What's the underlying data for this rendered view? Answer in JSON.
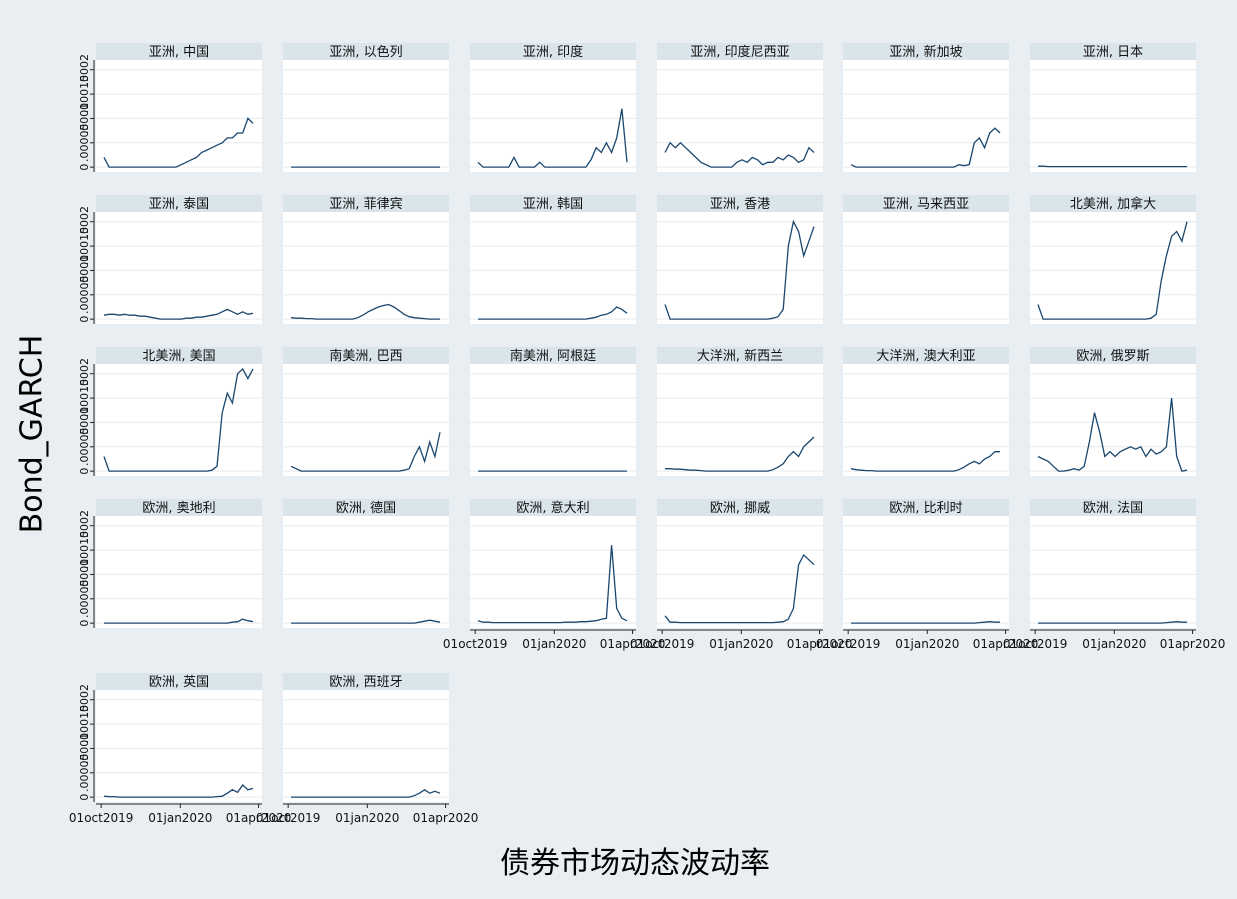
{
  "chart_data": {
    "type": "line",
    "ylabel": "Bond_GARCH",
    "xlabel": "债券市场动态波动率",
    "x_ticks": [
      "01oct2019",
      "01jan2020",
      "01apr2020"
    ],
    "y_ticks": [
      "0",
      ".00005",
      ".0001",
      ".00015",
      ".0002"
    ],
    "ylim": [
      -1e-05,
      0.00022
    ],
    "xlim": [
      "2019-09-25",
      "2020-04-05"
    ],
    "grid": true,
    "panels": [
      {
        "title": "亚洲, 中国",
        "values": [
          2e-05,
          0,
          0,
          0,
          0,
          0,
          0,
          0,
          0,
          0,
          0,
          0,
          0,
          0,
          0,
          5e-06,
          1e-05,
          1.5e-05,
          2e-05,
          3e-05,
          3.5e-05,
          4e-05,
          4.5e-05,
          5e-05,
          6e-05,
          6e-05,
          7e-05,
          7e-05,
          0.0001,
          9e-05
        ]
      },
      {
        "title": "亚洲, 以色列",
        "values": [
          0,
          0,
          0,
          0,
          0,
          0,
          0,
          0,
          0,
          0,
          0,
          0,
          0,
          0,
          0,
          0,
          0,
          0,
          0,
          0,
          0,
          0,
          0,
          0,
          0,
          0,
          0,
          0,
          0,
          0
        ]
      },
      {
        "title": "亚洲, 印度",
        "values": [
          1e-05,
          0,
          0,
          0,
          0,
          0,
          0,
          2e-05,
          0,
          0,
          0,
          0,
          1e-05,
          0,
          0,
          0,
          0,
          0,
          0,
          0,
          0,
          0,
          1.5e-05,
          4e-05,
          3e-05,
          5e-05,
          3e-05,
          6e-05,
          0.00012,
          1e-05
        ]
      },
      {
        "title": "亚洲, 印度尼西亚",
        "values": [
          3e-05,
          5e-05,
          4e-05,
          5e-05,
          4e-05,
          3e-05,
          2e-05,
          1e-05,
          5e-06,
          0,
          0,
          0,
          0,
          0,
          1e-05,
          1.5e-05,
          1e-05,
          2e-05,
          1.5e-05,
          5e-06,
          1e-05,
          1e-05,
          2e-05,
          1.5e-05,
          2.5e-05,
          2e-05,
          1e-05,
          1.5e-05,
          4e-05,
          3e-05
        ]
      },
      {
        "title": "亚洲, 新加坡",
        "values": [
          5e-06,
          0,
          0,
          0,
          0,
          0,
          0,
          0,
          0,
          0,
          0,
          0,
          0,
          0,
          0,
          0,
          0,
          0,
          0,
          0,
          0,
          5e-06,
          3e-06,
          5e-06,
          5e-05,
          6e-05,
          4e-05,
          7e-05,
          8e-05,
          7e-05
        ]
      },
      {
        "title": "亚洲, 日本",
        "values": [
          2e-06,
          2e-06,
          1e-06,
          1e-06,
          1e-06,
          1e-06,
          1e-06,
          1e-06,
          1e-06,
          1e-06,
          1e-06,
          1e-06,
          1e-06,
          1e-06,
          1e-06,
          1e-06,
          1e-06,
          1e-06,
          1e-06,
          1e-06,
          1e-06,
          1e-06,
          1e-06,
          1e-06,
          1e-06,
          1e-06,
          1e-06,
          1e-06,
          1e-06,
          1e-06
        ]
      },
      {
        "title": "亚洲, 泰国",
        "values": [
          8e-06,
          1e-05,
          1e-05,
          8e-06,
          1e-05,
          8e-06,
          8e-06,
          6e-06,
          6e-06,
          4e-06,
          2e-06,
          0,
          0,
          0,
          0,
          0,
          2e-06,
          2e-06,
          4e-06,
          4e-06,
          6e-06,
          8e-06,
          1e-05,
          1.5e-05,
          2e-05,
          1.5e-05,
          1e-05,
          1.5e-05,
          1e-05,
          1.2e-05
        ]
      },
      {
        "title": "亚洲, 菲律宾",
        "values": [
          3e-06,
          2e-06,
          2e-06,
          1e-06,
          1e-06,
          0,
          0,
          0,
          0,
          0,
          0,
          0,
          0,
          3e-06,
          8e-06,
          1.5e-05,
          2e-05,
          2.5e-05,
          2.8e-05,
          3e-05,
          2.5e-05,
          1.8e-05,
          1e-05,
          5e-06,
          3e-06,
          2e-06,
          1e-06,
          0,
          0,
          0
        ]
      },
      {
        "title": "亚洲, 韩国",
        "values": [
          0,
          0,
          0,
          0,
          0,
          0,
          0,
          0,
          0,
          0,
          0,
          0,
          0,
          0,
          0,
          0,
          0,
          0,
          0,
          0,
          0,
          0,
          2e-06,
          4e-06,
          8e-06,
          1e-05,
          1.5e-05,
          2.5e-05,
          2e-05,
          1.2e-05
        ]
      },
      {
        "title": "亚洲, 香港",
        "values": [
          3e-05,
          0,
          0,
          0,
          0,
          0,
          0,
          0,
          0,
          0,
          0,
          0,
          0,
          0,
          0,
          0,
          0,
          0,
          0,
          0,
          0,
          2e-06,
          5e-06,
          2e-05,
          0.00015,
          0.0002,
          0.00018,
          0.00013,
          0.00016,
          0.00019
        ]
      },
      {
        "title": "亚洲, 马来西亚",
        "values": []
      },
      {
        "title": "北美洲, 加拿大",
        "values": [
          3e-05,
          0,
          0,
          0,
          0,
          0,
          0,
          0,
          0,
          0,
          0,
          0,
          0,
          0,
          0,
          0,
          0,
          0,
          0,
          0,
          0,
          0,
          2e-06,
          1e-05,
          8e-05,
          0.00013,
          0.00017,
          0.00018,
          0.00016,
          0.0002
        ]
      },
      {
        "title": "北美洲, 美国",
        "values": [
          3e-05,
          0,
          0,
          0,
          0,
          0,
          0,
          0,
          0,
          0,
          0,
          0,
          0,
          0,
          0,
          0,
          0,
          0,
          0,
          0,
          0,
          2e-06,
          1e-05,
          0.00012,
          0.00016,
          0.00014,
          0.0002,
          0.00021,
          0.00019,
          0.00021
        ]
      },
      {
        "title": "南美洲, 巴西",
        "values": [
          1e-05,
          5e-06,
          0,
          0,
          0,
          0,
          0,
          0,
          0,
          0,
          0,
          0,
          0,
          0,
          0,
          0,
          0,
          0,
          0,
          0,
          0,
          0,
          2e-06,
          5e-06,
          3e-05,
          5e-05,
          2e-05,
          6e-05,
          3e-05,
          8e-05
        ]
      },
      {
        "title": "南美洲, 阿根廷",
        "values": [
          0,
          0,
          0,
          0,
          0,
          0,
          0,
          0,
          0,
          0,
          0,
          0,
          0,
          0,
          0,
          0,
          0,
          0,
          0,
          0,
          0,
          0,
          0,
          0,
          0,
          0,
          0,
          0,
          0,
          0
        ]
      },
      {
        "title": "大洋洲, 新西兰",
        "values": [
          5e-06,
          5e-06,
          4e-06,
          4e-06,
          3e-06,
          2e-06,
          2e-06,
          1e-06,
          0,
          0,
          0,
          0,
          0,
          0,
          0,
          0,
          0,
          0,
          0,
          0,
          0,
          3e-06,
          8e-06,
          1.5e-05,
          3e-05,
          4e-05,
          3e-05,
          5e-05,
          6e-05,
          7e-05
        ]
      },
      {
        "title": "大洋洲, 澳大利亚",
        "values": [
          5e-06,
          3e-06,
          2e-06,
          1e-06,
          1e-06,
          0,
          0,
          0,
          0,
          0,
          0,
          0,
          0,
          0,
          0,
          0,
          0,
          0,
          0,
          0,
          0,
          3e-06,
          8e-06,
          1.5e-05,
          2e-05,
          1.5e-05,
          2.5e-05,
          3e-05,
          4e-05,
          4e-05
        ]
      },
      {
        "title": "欧洲, 俄罗斯",
        "values": [
          3e-05,
          2.5e-05,
          2e-05,
          1e-05,
          0,
          0,
          2e-06,
          5e-06,
          2e-06,
          1e-05,
          6e-05,
          0.00012,
          8e-05,
          3e-05,
          4e-05,
          3e-05,
          4e-05,
          4.5e-05,
          5e-05,
          4.5e-05,
          5e-05,
          3e-05,
          4.5e-05,
          3.5e-05,
          4e-05,
          5e-05,
          0.00015,
          3e-05,
          0,
          2e-06
        ]
      },
      {
        "title": "欧洲, 奥地利",
        "values": [
          0,
          0,
          0,
          0,
          0,
          0,
          0,
          0,
          0,
          0,
          0,
          0,
          0,
          0,
          0,
          0,
          0,
          0,
          0,
          0,
          0,
          0,
          0,
          0,
          0,
          2e-06,
          3e-06,
          8e-06,
          5e-06,
          3e-06
        ]
      },
      {
        "title": "欧洲, 德国",
        "values": [
          0,
          0,
          0,
          0,
          0,
          0,
          0,
          0,
          0,
          0,
          0,
          0,
          0,
          0,
          0,
          0,
          0,
          0,
          0,
          0,
          0,
          0,
          0,
          0,
          0,
          2e-06,
          4e-06,
          6e-06,
          4e-06,
          2e-06
        ]
      },
      {
        "title": "欧洲, 意大利",
        "values": [
          5e-06,
          2e-06,
          2e-06,
          1e-06,
          1e-06,
          1e-06,
          1e-06,
          1e-06,
          1e-06,
          1e-06,
          1e-06,
          1e-06,
          1e-06,
          1e-06,
          1e-06,
          1e-06,
          1e-06,
          2e-06,
          2e-06,
          2e-06,
          3e-06,
          3e-06,
          4e-06,
          5e-06,
          8e-06,
          1e-05,
          0.00016,
          3e-05,
          1e-05,
          5e-06
        ]
      },
      {
        "title": "欧洲, 挪威",
        "values": [
          1.5e-05,
          2e-06,
          2e-06,
          1e-06,
          1e-06,
          1e-06,
          1e-06,
          1e-06,
          1e-06,
          1e-06,
          1e-06,
          1e-06,
          1e-06,
          1e-06,
          1e-06,
          1e-06,
          1e-06,
          1e-06,
          1e-06,
          1e-06,
          1e-06,
          1e-06,
          2e-06,
          3e-06,
          8e-06,
          3e-05,
          0.00012,
          0.00014,
          0.00013,
          0.00012
        ]
      },
      {
        "title": "欧洲, 比利时",
        "values": [
          0,
          0,
          0,
          0,
          0,
          0,
          0,
          0,
          0,
          0,
          0,
          0,
          0,
          0,
          0,
          0,
          0,
          0,
          0,
          0,
          0,
          0,
          0,
          0,
          0,
          1e-06,
          2e-06,
          3e-06,
          2e-06,
          2e-06
        ]
      },
      {
        "title": "欧洲, 法国",
        "values": [
          0,
          0,
          0,
          0,
          0,
          0,
          0,
          0,
          0,
          0,
          0,
          0,
          0,
          0,
          0,
          0,
          0,
          0,
          0,
          0,
          0,
          0,
          0,
          0,
          0,
          1e-06,
          2e-06,
          3e-06,
          2e-06,
          2e-06
        ]
      },
      {
        "title": "欧洲, 英国",
        "values": [
          2e-06,
          1e-06,
          1e-06,
          0,
          0,
          0,
          0,
          0,
          0,
          0,
          0,
          0,
          0,
          0,
          0,
          0,
          0,
          0,
          0,
          0,
          0,
          0,
          1e-06,
          2e-06,
          8e-06,
          1.5e-05,
          1e-05,
          2.5e-05,
          1.5e-05,
          1.8e-05
        ]
      },
      {
        "title": "欧洲, 西班牙",
        "values": [
          0,
          0,
          0,
          0,
          0,
          0,
          0,
          0,
          0,
          0,
          0,
          0,
          0,
          0,
          0,
          0,
          0,
          0,
          0,
          0,
          0,
          0,
          0,
          0,
          3e-06,
          8e-06,
          1.5e-05,
          8e-06,
          1.2e-05,
          8e-06
        ]
      }
    ]
  }
}
